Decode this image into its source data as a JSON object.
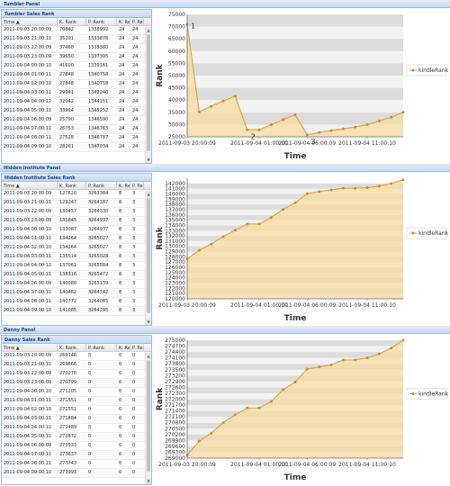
{
  "panels": [
    {
      "title": "Tumbler Panel",
      "grid_title": "Tumbler Sales Rank",
      "columns": [
        "Time ▲",
        "K. Rank",
        "P. Rank",
        "K. Revi",
        "P. Revi"
      ],
      "rows": [
        [
          "2011-09-03 20:00:09",
          "70842",
          "1338992",
          "24",
          "24"
        ],
        [
          "2011-09-03 21:00:11",
          "35201",
          "1333876",
          "24",
          "24"
        ],
        [
          "2011-09-03 22:00:09",
          "37468",
          "1335380",
          "24",
          "24"
        ],
        [
          "2011-09-03 23:00:09",
          "39650",
          "1337395",
          "24",
          "24"
        ],
        [
          "2011-09-04 00:00:10",
          "41600",
          "1339161",
          "24",
          "24"
        ],
        [
          "2011-09-04 01:00:11",
          "27848",
          "1340758",
          "24",
          "24"
        ],
        [
          "2011-09-04 02:00:10",
          "27848",
          "1340758",
          "24",
          "24"
        ],
        [
          "2011-09-04 03:00:11",
          "29941",
          "1342240",
          "24",
          "24"
        ],
        [
          "2011-09-04 04:00:12",
          "32042",
          "1344151",
          "24",
          "24"
        ],
        [
          "2011-09-04 05:00:11",
          "33994",
          "1345252",
          "24",
          "24"
        ],
        [
          "2011-09-04 06:00:09",
          "25790",
          "1346590",
          "24",
          "24"
        ],
        [
          "2011-09-04 07:00:11",
          "26753",
          "1346763",
          "24",
          "24"
        ],
        [
          "2011-09-04 08:00:11",
          "27528",
          "1346787",
          "24",
          "24"
        ],
        [
          "2011-09-04 09:00:10",
          "28261",
          "1347034",
          "24",
          "24"
        ]
      ]
    },
    {
      "title": "Hidden Institute Panel",
      "grid_title": "Hidden Institute Sales Rank",
      "columns": [
        "Time ▲",
        "K. Rank",
        "P. Rank",
        "K. Revi",
        "P. Revi"
      ],
      "rows": [
        [
          "2011-09-03 20:00:09",
          "127620",
          "3263384",
          "8",
          "3"
        ],
        [
          "2011-09-03 21:00:11",
          "129247",
          "3264187",
          "8",
          "3"
        ],
        [
          "2011-09-03 22:00:09",
          "130457",
          "3264330",
          "8",
          "3"
        ],
        [
          "2011-09-03 23:00:09",
          "131845",
          "3264937",
          "8",
          "3"
        ],
        [
          "2011-09-04 00:00:10",
          "133087",
          "3264937",
          "8",
          "3"
        ],
        [
          "2011-09-04 01:00:11",
          "134264",
          "3265027",
          "8",
          "3"
        ],
        [
          "2011-09-04 02:00:10",
          "134264",
          "3265027",
          "8",
          "3"
        ],
        [
          "2011-09-04 03:00:11",
          "135514",
          "3265028",
          "8",
          "3"
        ],
        [
          "2011-09-04 04:00:12",
          "137061",
          "3265584",
          "8",
          "3"
        ],
        [
          "2011-09-04 05:00:11",
          "138316",
          "3265472",
          "8",
          "3"
        ],
        [
          "2011-09-04 06:00:09",
          "140080",
          "3265139",
          "8",
          "3"
        ],
        [
          "2011-09-04 07:00:11",
          "140462",
          "3264742",
          "8",
          "3"
        ],
        [
          "2011-09-04 08:00:11",
          "140772",
          "3264085",
          "8",
          "3"
        ],
        [
          "2011-09-04 09:00:10",
          "141085",
          "3264295",
          "8",
          "3"
        ]
      ]
    },
    {
      "title": "Danny Panel",
      "grid_title": "Danny Sales Rank",
      "columns": [
        "Time ▲",
        "K. Rank",
        "P. Rank",
        "K. Revi",
        "P. Revi"
      ],
      "rows": [
        [
          "2011-09-03 20:00:09",
          "269146",
          "0",
          "0",
          "0"
        ],
        [
          "2011-09-03 21:00:11",
          "269866",
          "0",
          "0",
          "0"
        ],
        [
          "2011-09-03 22:00:09",
          "270270",
          "0",
          "0",
          "0"
        ],
        [
          "2011-09-03 23:00:09",
          "270799",
          "0",
          "0",
          "0"
        ],
        [
          "2011-09-04 00:00:10",
          "271205",
          "0",
          "0",
          "0"
        ],
        [
          "2011-09-04 01:00:11",
          "271551",
          "0",
          "0",
          "0"
        ],
        [
          "2011-09-04 02:00:10",
          "271551",
          "0",
          "0",
          "0"
        ],
        [
          "2011-09-04 03:00:11",
          "271884",
          "0",
          "0",
          "0"
        ],
        [
          "2011-09-04 04:00:12",
          "272489",
          "0",
          "0",
          "0"
        ],
        [
          "2011-09-04 05:00:11",
          "272872",
          "0",
          "0",
          "0"
        ],
        [
          "2011-09-04 06:00:09",
          "273533",
          "0",
          "0",
          "0"
        ],
        [
          "2011-09-04 07:00:11",
          "273637",
          "0",
          "0",
          "0"
        ],
        [
          "2011-09-04 08:00:11",
          "273743",
          "0",
          "0",
          "0"
        ],
        [
          "2011-09-04 09:00:10",
          "273993",
          "0",
          "0",
          "0"
        ]
      ]
    }
  ],
  "chart_data": [
    {
      "type": "area",
      "ylabel": "Rank",
      "xlabel": "Time",
      "legend": "kindleRank",
      "legend_position": "right",
      "ylim": [
        25000,
        75000
      ],
      "yticks": [
        25000,
        30000,
        35000,
        40000,
        45000,
        50000,
        55000,
        60000,
        65000,
        70000,
        75000
      ],
      "xticks": [
        "2011-09-03 20:00:09",
        "2011-09-04 01:00:10",
        "2011-09-04 06:00:09",
        "2011-09-04 11:00:10"
      ],
      "x": [
        "2011-09-03 20:00:09",
        "2011-09-03 21:00:11",
        "2011-09-03 22:00:09",
        "2011-09-03 23:00:09",
        "2011-09-04 00:00:10",
        "2011-09-04 01:00:11",
        "2011-09-04 02:00:10",
        "2011-09-04 03:00:11",
        "2011-09-04 04:00:12",
        "2011-09-04 05:00:11",
        "2011-09-04 06:00:09",
        "2011-09-04 07:00:11",
        "2011-09-04 08:00:11",
        "2011-09-04 09:00:10",
        "2011-09-04 10:00:10",
        "2011-09-04 11:00:10",
        "2011-09-04 12:00:10",
        "2011-09-04 13:00:10",
        "2011-09-04 14:00:10"
      ],
      "values": [
        70842,
        35201,
        37468,
        39650,
        41600,
        27848,
        27848,
        29941,
        32042,
        33994,
        25790,
        26753,
        27528,
        28261,
        29000,
        30000,
        31500,
        33000,
        35000
      ],
      "annotations": [
        {
          "label": "1",
          "index": 0
        },
        {
          "label": "2",
          "index": 5
        },
        {
          "label": "3",
          "index": 10
        }
      ],
      "grid": true,
      "stripes": true
    },
    {
      "type": "area",
      "ylabel": "Rank",
      "xlabel": "Time",
      "legend": "kindleRank",
      "legend_position": "right",
      "ylim": [
        120000,
        143000
      ],
      "yticks": [
        120000,
        121000,
        122000,
        123000,
        124000,
        125000,
        126000,
        127000,
        128000,
        129000,
        130000,
        131000,
        132000,
        133000,
        134000,
        135000,
        136000,
        137000,
        138000,
        139000,
        140000,
        141000,
        142000
      ],
      "xticks": [
        "2011-09-03 20:00:09",
        "2011-09-04 01:00:10",
        "2011-09-04 06:00:09",
        "2011-09-04 11:00:10"
      ],
      "x": [
        "2011-09-03 20:00:09",
        "2011-09-03 21:00:11",
        "2011-09-03 22:00:09",
        "2011-09-03 23:00:09",
        "2011-09-04 00:00:10",
        "2011-09-04 01:00:11",
        "2011-09-04 02:00:10",
        "2011-09-04 03:00:11",
        "2011-09-04 04:00:12",
        "2011-09-04 05:00:11",
        "2011-09-04 06:00:09",
        "2011-09-04 07:00:11",
        "2011-09-04 08:00:11",
        "2011-09-04 09:00:10",
        "2011-09-04 10:00:10",
        "2011-09-04 11:00:10",
        "2011-09-04 12:00:10",
        "2011-09-04 13:00:10",
        "2011-09-04 14:00:10"
      ],
      "values": [
        127620,
        129247,
        130457,
        131845,
        133087,
        134264,
        134264,
        135514,
        137061,
        138316,
        140080,
        140462,
        140772,
        141085,
        141100,
        141200,
        141500,
        142000,
        142700
      ],
      "grid": true,
      "stripes": true
    },
    {
      "type": "area",
      "ylabel": "Rank",
      "xlabel": "Time",
      "legend": "kindleRank",
      "legend_position": "right",
      "ylim": [
        269000,
        275000
      ],
      "yticks": [
        269000,
        269300,
        269600,
        269900,
        270200,
        270500,
        270800,
        271100,
        271400,
        271700,
        272000,
        272300,
        272600,
        272900,
        273200,
        273500,
        273800,
        274100,
        274400,
        274700,
        275000
      ],
      "xticks": [
        "2011-09-03 20:00:09",
        "2011-09-04 01:00:10",
        "2011-09-04 06:00:09",
        "2011-09-04 11:00:10"
      ],
      "x": [
        "2011-09-03 20:00:09",
        "2011-09-03 21:00:11",
        "2011-09-03 22:00:09",
        "2011-09-03 23:00:09",
        "2011-09-04 00:00:10",
        "2011-09-04 01:00:11",
        "2011-09-04 02:00:10",
        "2011-09-04 03:00:11",
        "2011-09-04 04:00:12",
        "2011-09-04 05:00:11",
        "2011-09-04 06:00:09",
        "2011-09-04 07:00:11",
        "2011-09-04 08:00:11",
        "2011-09-04 09:00:10",
        "2011-09-04 10:00:10",
        "2011-09-04 11:00:10",
        "2011-09-04 12:00:10",
        "2011-09-04 13:00:10",
        "2011-09-04 14:00:10"
      ],
      "values": [
        269146,
        269866,
        270270,
        270799,
        271205,
        271551,
        271551,
        271884,
        272489,
        272872,
        273533,
        273637,
        273743,
        273993,
        274000,
        274100,
        274300,
        274600,
        275000
      ],
      "grid": true,
      "stripes": true
    }
  ],
  "theme": {
    "area_fill": "#f7dca0",
    "line_color": "#d9a845",
    "marker_color": "#c8902a",
    "stripe_dark": "#dcdcdc",
    "stripe_light": "#f2f2f2",
    "header_color": "#15428b"
  }
}
